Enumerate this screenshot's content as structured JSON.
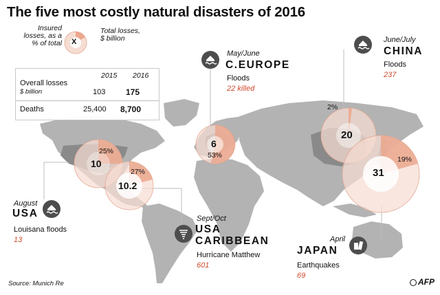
{
  "title": "The five most costly natural disasters of 2016",
  "legend": {
    "left_label": "Insured losses, as a % of total",
    "marker": "X",
    "right_label": "Total losses, $ billion"
  },
  "table": {
    "headers": [
      "2015",
      "2016"
    ],
    "rows": [
      {
        "label": "Overall losses",
        "unit": "$ billion",
        "v2015": "103",
        "v2016": "175"
      },
      {
        "label": "Deaths",
        "unit": "",
        "v2015": "25,400",
        "v2016": "8,700"
      }
    ]
  },
  "disasters": [
    {
      "id": "usa",
      "date": "August",
      "region": "USA",
      "event": "Louisana floods",
      "detail": "13",
      "total": "10",
      "insured_pct": "25%",
      "icon": "flood-house-icon"
    },
    {
      "id": "caribbean",
      "date": "Sept/Oct",
      "region_line1": "USA",
      "region_line2": "CARIBBEAN",
      "event": "Hurricane Matthew",
      "detail": "601",
      "total": "10.2",
      "insured_pct": "27%",
      "icon": "hurricane-icon"
    },
    {
      "id": "europe",
      "date": "May/June",
      "region": "C.EUROPE",
      "event": "Floods",
      "detail": "22 killed",
      "total": "6",
      "insured_pct": "53%",
      "icon": "flood-house-icon"
    },
    {
      "id": "china",
      "date": "June/July",
      "region": "CHINA",
      "event": "Floods",
      "detail": "237",
      "total": "20",
      "insured_pct": "2%",
      "icon": "flood-house-icon"
    },
    {
      "id": "japan",
      "date": "April",
      "region": "JAPAN",
      "event": "Earthquakes",
      "detail": "69",
      "total": "31",
      "insured_pct": "19%",
      "icon": "collapsed-building-icon"
    }
  ],
  "source": "Source: Munich Re",
  "credit": "AFP",
  "colors": {
    "land": "#b3b3b3",
    "highlight_land": "#8a8a8a",
    "bubble_fill": "#f6ddd2",
    "insured_fill": "#eba78e",
    "accent_text": "#cf4a2c",
    "leader_line": "#bcbcbc"
  }
}
